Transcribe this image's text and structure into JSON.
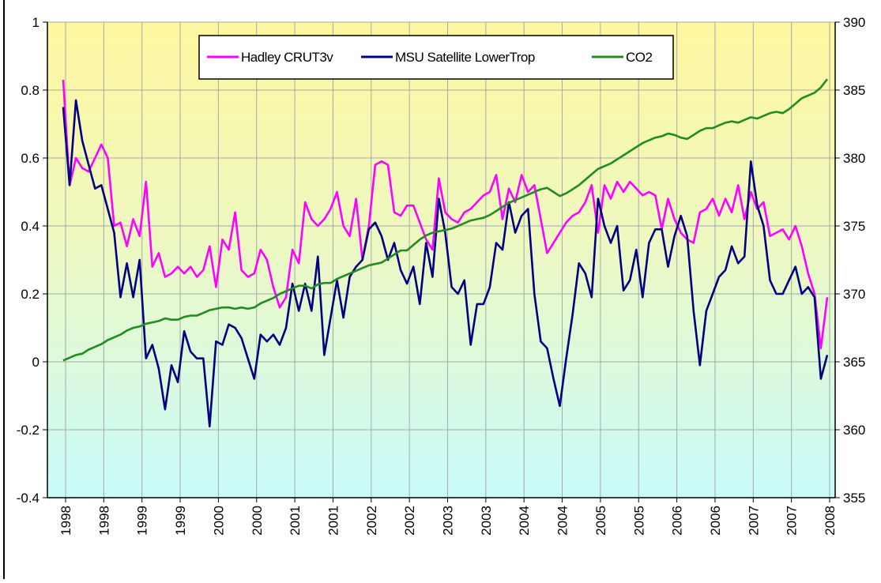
{
  "chart_data": {
    "type": "line",
    "categories": [
      "1998",
      null,
      null,
      null,
      null,
      null,
      "1998",
      null,
      null,
      null,
      null,
      null,
      "1999",
      null,
      null,
      null,
      null,
      null,
      "1999",
      null,
      null,
      null,
      null,
      null,
      "2000",
      null,
      null,
      null,
      null,
      null,
      "2000",
      null,
      null,
      null,
      null,
      null,
      "2001",
      null,
      null,
      null,
      null,
      null,
      "2001",
      null,
      null,
      null,
      null,
      null,
      "2002",
      null,
      null,
      null,
      null,
      null,
      "2002",
      null,
      null,
      null,
      null,
      null,
      "2003",
      null,
      null,
      null,
      null,
      null,
      "2003",
      null,
      null,
      null,
      null,
      null,
      "2004",
      null,
      null,
      null,
      null,
      null,
      "2004",
      null,
      null,
      null,
      null,
      null,
      "2005",
      null,
      null,
      null,
      null,
      null,
      "2005",
      null,
      null,
      null,
      null,
      null,
      "2006",
      null,
      null,
      null,
      null,
      null,
      "2006",
      null,
      null,
      null,
      null,
      null,
      "2007",
      null,
      null,
      null,
      null,
      null,
      "2007",
      null,
      null,
      null,
      null,
      null,
      "2008"
    ],
    "series": [
      {
        "name": "Hadley CRUT3v",
        "color": "#ff00ff",
        "values": [
          0.83,
          0.52,
          0.6,
          0.57,
          0.56,
          0.6,
          0.64,
          0.6,
          0.4,
          0.41,
          0.34,
          0.42,
          0.37,
          0.53,
          0.28,
          0.32,
          0.25,
          0.26,
          0.28,
          0.26,
          0.28,
          0.25,
          0.27,
          0.34,
          0.22,
          0.36,
          0.33,
          0.44,
          0.27,
          0.25,
          0.26,
          0.33,
          0.3,
          0.22,
          0.16,
          0.19,
          0.33,
          0.29,
          0.47,
          0.42,
          0.4,
          0.42,
          0.45,
          0.5,
          0.4,
          0.37,
          0.48,
          0.3,
          0.4,
          0.58,
          0.59,
          0.58,
          0.44,
          0.43,
          0.46,
          0.46,
          0.41,
          0.36,
          0.33,
          0.54,
          0.44,
          0.42,
          0.41,
          0.44,
          0.45,
          0.47,
          0.49,
          0.5,
          0.55,
          0.42,
          0.51,
          0.47,
          0.55,
          0.5,
          0.52,
          0.42,
          0.32,
          0.35,
          0.38,
          0.41,
          0.43,
          0.44,
          0.47,
          0.52,
          0.38,
          0.52,
          0.48,
          0.53,
          0.5,
          0.53,
          0.51,
          0.49,
          0.5,
          0.49,
          0.39,
          0.48,
          0.42,
          0.38,
          0.36,
          0.35,
          0.44,
          0.45,
          0.48,
          0.43,
          0.48,
          0.44,
          0.52,
          0.42,
          0.5,
          0.45,
          0.47,
          0.37,
          0.38,
          0.39,
          0.36,
          0.4,
          0.34,
          0.26,
          0.2,
          0.04,
          0.19
        ]
      },
      {
        "name": "MSU Satellite LowerTrop",
        "color": "#000080",
        "values": [
          0.75,
          0.52,
          0.77,
          0.65,
          0.58,
          0.51,
          0.52,
          0.45,
          0.38,
          0.19,
          0.29,
          0.19,
          0.3,
          0.01,
          0.05,
          -0.02,
          -0.14,
          -0.01,
          -0.06,
          0.09,
          0.03,
          0.01,
          0.01,
          -0.19,
          0.06,
          0.05,
          0.11,
          0.1,
          0.07,
          0.01,
          -0.05,
          0.08,
          0.06,
          0.08,
          0.05,
          0.1,
          0.23,
          0.15,
          0.23,
          0.15,
          0.31,
          0.02,
          0.13,
          0.24,
          0.13,
          0.25,
          0.28,
          0.3,
          0.39,
          0.41,
          0.37,
          0.3,
          0.35,
          0.27,
          0.23,
          0.28,
          0.17,
          0.35,
          0.25,
          0.48,
          0.38,
          0.22,
          0.2,
          0.24,
          0.05,
          0.17,
          0.17,
          0.22,
          0.35,
          0.33,
          0.47,
          0.38,
          0.43,
          0.45,
          0.2,
          0.06,
          0.04,
          -0.05,
          -0.13,
          0.01,
          0.14,
          0.29,
          0.26,
          0.19,
          0.48,
          0.4,
          0.35,
          0.4,
          0.21,
          0.24,
          0.33,
          0.19,
          0.35,
          0.39,
          0.39,
          0.28,
          0.37,
          0.43,
          0.37,
          0.15,
          -0.01,
          0.15,
          0.2,
          0.25,
          0.27,
          0.34,
          0.29,
          0.31,
          0.59,
          0.46,
          0.4,
          0.24,
          0.2,
          0.2,
          0.24,
          0.28,
          0.2,
          0.22,
          0.19,
          -0.05,
          0.02
        ]
      },
      {
        "name": "CO2",
        "color": "#228b22",
        "axis": "y2",
        "values": [
          365.1,
          365.3,
          365.5,
          365.6,
          365.9,
          366.1,
          366.3,
          366.6,
          366.8,
          367.0,
          367.3,
          367.5,
          367.6,
          367.8,
          367.9,
          368.0,
          368.2,
          368.1,
          368.1,
          368.3,
          368.4,
          368.4,
          368.6,
          368.8,
          368.9,
          369.0,
          369.0,
          368.9,
          369.0,
          368.9,
          369.0,
          369.3,
          369.5,
          369.7,
          370.0,
          370.2,
          370.4,
          370.6,
          370.6,
          370.4,
          370.7,
          370.8,
          370.8,
          371.1,
          371.3,
          371.5,
          371.7,
          371.9,
          372.1,
          372.2,
          372.3,
          372.6,
          372.9,
          373.2,
          373.2,
          373.6,
          374.0,
          374.3,
          374.5,
          374.6,
          374.7,
          374.8,
          375.0,
          375.2,
          375.4,
          375.5,
          375.6,
          375.8,
          376.1,
          376.4,
          376.7,
          376.9,
          377.1,
          377.3,
          377.5,
          377.7,
          377.8,
          377.5,
          377.2,
          377.4,
          377.7,
          378.0,
          378.4,
          378.8,
          379.2,
          379.4,
          379.6,
          379.9,
          380.2,
          380.5,
          380.8,
          381.1,
          381.3,
          381.5,
          381.6,
          381.8,
          381.7,
          381.5,
          381.4,
          381.7,
          382.0,
          382.2,
          382.2,
          382.4,
          382.6,
          382.7,
          382.6,
          382.8,
          383.0,
          382.9,
          383.1,
          383.3,
          383.4,
          383.3,
          383.6,
          384.0,
          384.4,
          384.6,
          384.8,
          385.2,
          385.8
        ]
      }
    ],
    "ylim": [
      -0.4,
      1
    ],
    "yticks": [
      -0.4,
      -0.2,
      0,
      0.2,
      0.4,
      0.6,
      0.8,
      1
    ],
    "y2lim": [
      355,
      390
    ],
    "y2ticks": [
      355,
      360,
      365,
      370,
      375,
      380,
      385,
      390
    ],
    "grid": true
  }
}
